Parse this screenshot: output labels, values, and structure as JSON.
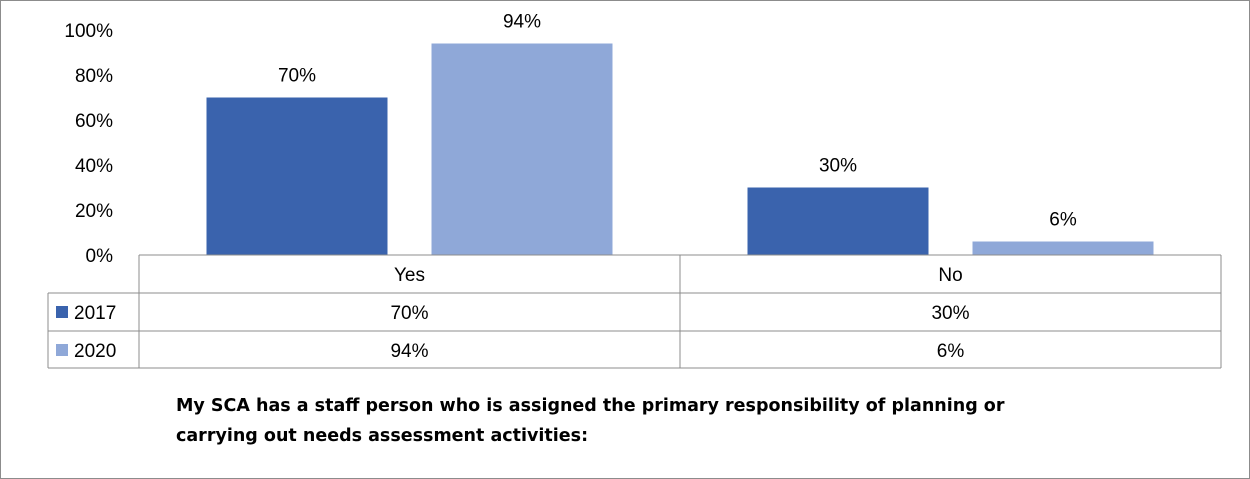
{
  "chart_data": {
    "type": "bar",
    "categories": [
      "Yes",
      "No"
    ],
    "series": [
      {
        "name": "2017",
        "values": [
          70,
          30
        ],
        "labels": [
          "70%",
          "30%"
        ],
        "color": "#3a63ad"
      },
      {
        "name": "2020",
        "values": [
          94,
          6
        ],
        "labels": [
          "94%",
          "6%"
        ],
        "color": "#8fa8d8"
      }
    ],
    "ylim": [
      0,
      100
    ],
    "yticks": [
      0,
      20,
      40,
      60,
      80,
      100
    ],
    "ytick_labels": [
      "0%",
      "20%",
      "40%",
      "60%",
      "80%",
      "100%"
    ],
    "data_table": true,
    "title": "My SCA has a staff person who is assigned the primary responsibility of planning or carrying out needs assessment activities:"
  }
}
